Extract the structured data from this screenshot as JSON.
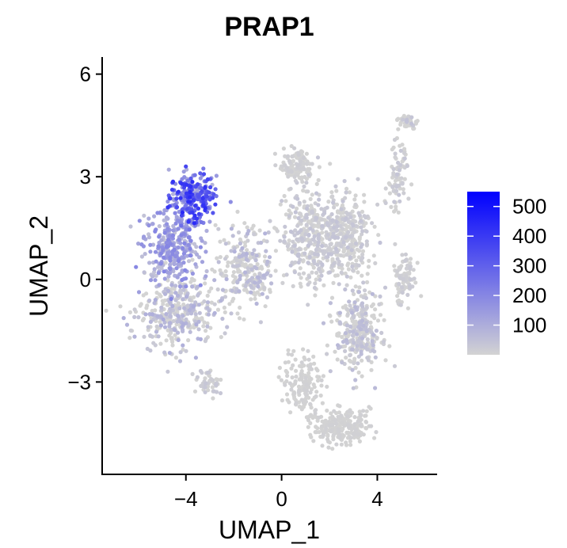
{
  "chart_data": {
    "type": "scatter",
    "title": "PRAP1",
    "xlabel": "UMAP_1",
    "ylabel": "UMAP_2",
    "xlim": [
      -7.5,
      6.5
    ],
    "ylim": [
      -5.7,
      6.5
    ],
    "x_ticks": [
      -4,
      0,
      4
    ],
    "x_tick_labels": [
      "−4",
      "0",
      "4"
    ],
    "y_ticks": [
      -3,
      0,
      3,
      6
    ],
    "y_tick_labels": [
      "−3",
      "0",
      "3",
      "6"
    ],
    "grid": false,
    "legend": {
      "placement": "right",
      "type": "colorbar",
      "min": 0,
      "max": 550,
      "ticks": [
        100,
        200,
        300,
        400,
        500
      ],
      "tick_labels": [
        "100",
        "200",
        "300",
        "400",
        "500"
      ],
      "color_low": "#d3d3d3",
      "color_high": "#0000ff"
    },
    "point_groups": [
      {
        "region": "left cluster (high expression, upper part)",
        "center": [
          -3.7,
          2.4
        ],
        "spread": [
          0.8,
          0.6
        ],
        "count": 260,
        "mean_value": 260
      },
      {
        "region": "left cluster (mid)",
        "center": [
          -4.6,
          1.0
        ],
        "spread": [
          1.0,
          0.9
        ],
        "count": 320,
        "mean_value": 120
      },
      {
        "region": "left cluster (lower)",
        "center": [
          -4.4,
          -1.0
        ],
        "spread": [
          1.3,
          0.9
        ],
        "count": 360,
        "mean_value": 60
      },
      {
        "region": "bottom-left tail",
        "center": [
          -3.0,
          -3.0
        ],
        "spread": [
          0.4,
          0.3
        ],
        "count": 50,
        "mean_value": 20
      },
      {
        "region": "central bridge",
        "center": [
          -1.5,
          0.3
        ],
        "spread": [
          1.0,
          1.0
        ],
        "count": 250,
        "mean_value": 50
      },
      {
        "region": "top central cluster",
        "center": [
          0.6,
          3.3
        ],
        "spread": [
          0.6,
          0.4
        ],
        "count": 120,
        "mean_value": 10
      },
      {
        "region": "central main",
        "center": [
          1.3,
          1.2
        ],
        "spread": [
          1.0,
          1.1
        ],
        "count": 380,
        "mean_value": 25
      },
      {
        "region": "right upper",
        "center": [
          2.8,
          1.3
        ],
        "spread": [
          0.8,
          1.0
        ],
        "count": 250,
        "mean_value": 25
      },
      {
        "region": "right middle",
        "center": [
          3.2,
          -1.5
        ],
        "spread": [
          0.8,
          1.0
        ],
        "count": 300,
        "mean_value": 40
      },
      {
        "region": "bottom cluster",
        "center": [
          2.5,
          -4.3
        ],
        "spread": [
          1.0,
          0.4
        ],
        "count": 230,
        "mean_value": 5
      },
      {
        "region": "lower center tail",
        "center": [
          0.9,
          -3.0
        ],
        "spread": [
          0.7,
          0.8
        ],
        "count": 150,
        "mean_value": 5
      },
      {
        "region": "far right group",
        "center": [
          5.1,
          0.0
        ],
        "spread": [
          0.4,
          0.6
        ],
        "count": 90,
        "mean_value": 15
      },
      {
        "region": "far right top arm",
        "center": [
          4.8,
          3.0
        ],
        "spread": [
          0.4,
          0.9
        ],
        "count": 80,
        "mean_value": 25
      },
      {
        "region": "top right tip",
        "center": [
          5.3,
          4.6
        ],
        "spread": [
          0.3,
          0.2
        ],
        "count": 40,
        "mean_value": 30
      }
    ]
  }
}
